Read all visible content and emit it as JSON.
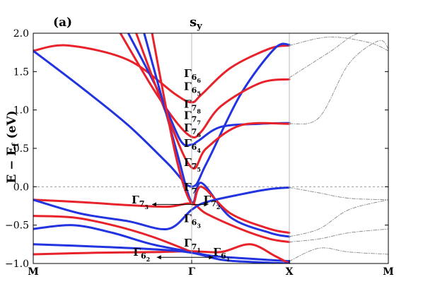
{
  "chart_data": {
    "type": "line",
    "panel_label": "(a)",
    "title": "s",
    "title_subscript": "y",
    "ylabel": "E − E",
    "ylabel_subscript": "f",
    "ylabel_unit": "(eV)",
    "ylim": [
      -1.0,
      2.0
    ],
    "yticks": [
      "−1.0",
      "−0.5",
      "0.0",
      "0.5",
      "1.0",
      "1.5",
      "2.0"
    ],
    "ytick_values": [
      -1.0,
      -0.5,
      0.0,
      0.5,
      1.0,
      1.5,
      2.0
    ],
    "xticks": [
      "M",
      "Γ",
      "X",
      "M"
    ],
    "xtick_positions": [
      0,
      1,
      2,
      3
    ],
    "grid": false,
    "fermi_level": 0.0,
    "colors": {
      "spin_up": "#e8222a",
      "spin_down": "#2233e0",
      "reference": "#888888",
      "frame": "#000000"
    },
    "annotations": [
      {
        "base": "Γ",
        "sub": "6",
        "subsub": "6",
        "x": 1.0,
        "y": 1.43
      },
      {
        "base": "Γ",
        "sub": "6",
        "subsub": "5",
        "x": 1.0,
        "y": 1.26
      },
      {
        "base": "Γ",
        "sub": "7",
        "subsub": "8",
        "x": 1.0,
        "y": 1.03
      },
      {
        "base": "Γ",
        "sub": "7",
        "subsub": "7",
        "x": 1.0,
        "y": 0.88
      },
      {
        "base": "Γ",
        "sub": "7",
        "subsub": "6",
        "x": 1.0,
        "y": 0.72
      },
      {
        "base": "Γ",
        "sub": "6",
        "subsub": "4",
        "x": 1.0,
        "y": 0.52
      },
      {
        "base": "Γ",
        "sub": "7",
        "subsub": "5",
        "x": 1.0,
        "y": 0.27
      },
      {
        "base": "Γ",
        "sub": "7",
        "subsub": "",
        "x": 1.0,
        "y": -0.05
      },
      {
        "base": "Γ",
        "sub": "7",
        "subsub": "3",
        "x": 0.67,
        "y": -0.22
      },
      {
        "base": "Γ",
        "sub": "7",
        "subsub": "2",
        "x": 1.2,
        "y": -0.22
      },
      {
        "base": "Γ",
        "sub": "6",
        "subsub": "3",
        "x": 1.0,
        "y": -0.46
      },
      {
        "base": "Γ",
        "sub": "7",
        "subsub": "1",
        "x": 1.0,
        "y": -0.78
      },
      {
        "base": "Γ",
        "sub": "6",
        "subsub": "2",
        "x": 0.68,
        "y": -0.9
      },
      {
        "base": "Γ",
        "sub": "6",
        "subsub": "1",
        "x": 1.3,
        "y": -0.9
      }
    ],
    "series": [
      {
        "color": "red",
        "x": [
          0,
          0.22,
          0.6,
          0.9,
          1.0,
          1.1,
          1.4,
          1.8,
          2.0
        ],
        "y": [
          1.77,
          1.84,
          1.65,
          1.2,
          1.1,
          1.2,
          1.55,
          1.8,
          1.84
        ]
      },
      {
        "color": "blue",
        "x": [
          0,
          0.3,
          0.6,
          0.85,
          1.0,
          1.15,
          1.5,
          1.85,
          2.0
        ],
        "y": [
          1.77,
          1.3,
          0.8,
          0.3,
          0.0,
          0.3,
          1.2,
          1.8,
          1.85
        ]
      },
      {
        "color": "red",
        "x": [
          0.55,
          0.75,
          0.9,
          1.0,
          1.1,
          1.3,
          1.7,
          2.0
        ],
        "y": [
          2.0,
          1.3,
          0.85,
          0.65,
          0.72,
          1.05,
          1.35,
          1.4
        ]
      },
      {
        "color": "blue",
        "x": [
          0.6,
          0.8,
          0.93,
          1.0,
          1.07,
          1.3,
          1.7,
          2.0
        ],
        "y": [
          2.0,
          1.2,
          0.6,
          0.55,
          0.6,
          0.78,
          0.82,
          0.83
        ]
      },
      {
        "color": "red",
        "x": [
          0.65,
          0.85,
          1.0,
          1.15,
          1.5,
          2.0
        ],
        "y": [
          2.0,
          0.9,
          0.25,
          0.5,
          0.8,
          0.82
        ]
      },
      {
        "color": "blue",
        "x": [
          0.7,
          0.9,
          1.0,
          1.1,
          1.4,
          1.8,
          2.0
        ],
        "y": [
          2.0,
          0.5,
          -0.2,
          0.05,
          -0.4,
          -0.6,
          -0.65
        ]
      },
      {
        "color": "red",
        "x": [
          0.75,
          0.9,
          1.0,
          1.1,
          1.4,
          1.8,
          2.0
        ],
        "y": [
          2.0,
          0.4,
          -0.22,
          0.0,
          -0.35,
          -0.55,
          -0.6
        ]
      },
      {
        "color": "red",
        "x": [
          0,
          0.3,
          0.6,
          0.85,
          1.0,
          1.15,
          1.5,
          1.8,
          2.0
        ],
        "y": [
          -0.17,
          -0.2,
          -0.24,
          -0.26,
          -0.22,
          -0.35,
          -0.55,
          -0.68,
          -0.72
        ]
      },
      {
        "color": "blue",
        "x": [
          0,
          0.3,
          0.6,
          0.85,
          1.0,
          1.15,
          1.5,
          1.8,
          2.0
        ],
        "y": [
          -0.17,
          -0.35,
          -0.45,
          -0.55,
          -0.3,
          -0.2,
          -0.1,
          -0.03,
          -0.01
        ]
      },
      {
        "color": "red",
        "x": [
          0,
          0.25,
          0.5,
          0.75,
          1.0
        ],
        "y": [
          -0.38,
          -0.4,
          -0.5,
          -0.65,
          -0.85
        ]
      },
      {
        "color": "blue",
        "x": [
          0,
          0.25,
          0.5,
          0.75,
          1.0,
          1.2,
          1.5,
          2.0
        ],
        "y": [
          -0.55,
          -0.5,
          -0.6,
          -0.75,
          -0.85,
          -0.9,
          -0.93,
          -0.97
        ]
      },
      {
        "color": "red",
        "x": [
          0,
          0.4,
          0.8,
          1.0,
          1.3,
          1.6,
          1.85,
          2.0
        ],
        "y": [
          -0.88,
          -0.86,
          -0.85,
          -0.84,
          -0.85,
          -0.75,
          -0.9,
          -1.0
        ]
      },
      {
        "color": "blue",
        "x": [
          0,
          0.4,
          0.8,
          1.0,
          1.3,
          1.6,
          2.0
        ],
        "y": [
          -0.75,
          -0.78,
          -0.82,
          -0.86,
          -0.95,
          -0.98,
          -1.0
        ]
      },
      {
        "color": "gray",
        "x": [
          2.0,
          2.4,
          2.8,
          3.0
        ],
        "y": [
          1.84,
          1.95,
          1.88,
          1.77
        ]
      },
      {
        "color": "gray",
        "x": [
          2.0,
          2.4,
          2.7,
          3.0
        ],
        "y": [
          1.42,
          1.75,
          2.0,
          2.0
        ]
      },
      {
        "color": "gray",
        "x": [
          2.0,
          2.3,
          2.6,
          2.9,
          3.0
        ],
        "y": [
          0.82,
          0.9,
          1.6,
          1.9,
          1.8
        ]
      },
      {
        "color": "gray",
        "x": [
          2.0,
          2.3,
          2.6,
          3.0
        ],
        "y": [
          -0.01,
          -0.08,
          -0.15,
          -0.17
        ]
      },
      {
        "color": "gray",
        "x": [
          2.0,
          2.3,
          2.6,
          3.0
        ],
        "y": [
          -0.65,
          -0.55,
          -0.3,
          -0.17
        ]
      },
      {
        "color": "gray",
        "x": [
          2.0,
          2.3,
          2.6,
          3.0
        ],
        "y": [
          -0.72,
          -0.68,
          -0.6,
          -0.55
        ]
      },
      {
        "color": "gray",
        "x": [
          2.0,
          2.3,
          2.6,
          3.0
        ],
        "y": [
          -0.97,
          -0.8,
          -0.85,
          -0.88
        ]
      }
    ]
  }
}
